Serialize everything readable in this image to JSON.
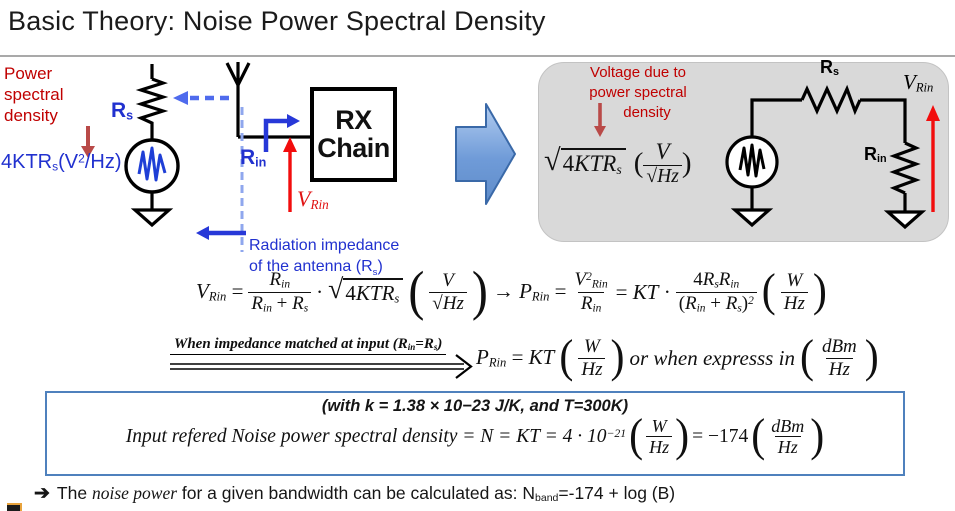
{
  "title": "Basic Theory: Noise Power Spectral Density",
  "colors": {
    "annotation_red": "#c00000",
    "bright_red": "#f20d0d",
    "label_blue": "#2131cf",
    "dashed_blue": "#4f6bed",
    "panel_gray": "#d9d9d9",
    "note_border_blue": "#4f81bd",
    "block_arrow_blue": "#6f9bd8"
  },
  "sym": {
    "lp": "(",
    "rp": ")",
    "sqrt": "√",
    "cdot": "·"
  },
  "left": {
    "psd_caption": [
      "Power",
      "spectral",
      "density"
    ],
    "psd_formula": [
      {
        "t": "4KTR"
      },
      {
        "t": "s",
        "v": "sub"
      },
      {
        "t": "(V"
      },
      {
        "t": "2",
        "v": "sup"
      },
      {
        "t": "/Hz)"
      }
    ],
    "rs": [
      {
        "t": "R"
      },
      {
        "t": "s",
        "v": "sub"
      }
    ],
    "rin": [
      {
        "t": "R"
      },
      {
        "t": "in",
        "v": "sub"
      }
    ],
    "vrin": [
      {
        "t": "V"
      },
      {
        "t": "Rin",
        "v": "sub"
      }
    ],
    "rx": {
      "line1": "RX",
      "line2": "Chain"
    },
    "rad_line1": "Radiation impedance",
    "rad_line2": [
      {
        "t": "of the antenna (R"
      },
      {
        "t": "s",
        "v": "sub"
      },
      {
        "t": ")"
      }
    ]
  },
  "panel": {
    "caption": [
      "Voltage due to",
      "power spectral",
      "density"
    ],
    "sqrt_body": [
      {
        "t": "4",
        "v": "up"
      },
      {
        "t": "KTR"
      },
      {
        "t": "s",
        "v": "sub"
      }
    ],
    "frac_num": "V",
    "frac_den": [
      {
        "t": "√",
        "v": "up"
      },
      {
        "t": "Hz",
        "v": "ol"
      }
    ],
    "rs": [
      {
        "t": "R"
      },
      {
        "t": "s",
        "v": "sub"
      }
    ],
    "rin": [
      {
        "t": "R"
      },
      {
        "t": "in",
        "v": "sub"
      }
    ],
    "vrin": [
      {
        "t": "V"
      },
      {
        "t": "Rin",
        "v": "sub"
      }
    ]
  },
  "eq1": {
    "lhs": [
      {
        "t": "V"
      },
      {
        "t": "Rin",
        "v": "sub"
      },
      {
        "t": " = ",
        "v": "up"
      }
    ],
    "f1_num": [
      {
        "t": "R"
      },
      {
        "t": "in",
        "v": "sub"
      }
    ],
    "f1_den": [
      {
        "t": "R"
      },
      {
        "t": "in",
        "v": "sub"
      },
      {
        "t": " + ",
        "v": "up"
      },
      {
        "t": "R"
      },
      {
        "t": "s",
        "v": "sub"
      }
    ],
    "cdot": "·",
    "sqrt_body": [
      {
        "t": "4",
        "v": "up"
      },
      {
        "t": "KTR"
      },
      {
        "t": "s",
        "v": "sub"
      }
    ],
    "pf1_num": [
      {
        "t": "V"
      }
    ],
    "pf1_den": [
      {
        "t": "√",
        "v": "up"
      },
      {
        "t": "Hz",
        "v": "ol"
      }
    ],
    "mid": [
      {
        "t": "→ ",
        "v": "up"
      },
      {
        "t": "P"
      },
      {
        "t": "Rin",
        "v": "sub"
      },
      {
        "t": " = ",
        "v": "up"
      }
    ],
    "f2_num": [
      {
        "t": "V"
      },
      {
        "t": "2",
        "v": "sup"
      },
      {
        "t": "Rin",
        "v": "sub"
      }
    ],
    "f2_den": [
      {
        "t": "R"
      },
      {
        "t": "in",
        "v": "sub"
      }
    ],
    "mid2": [
      {
        "t": "= ",
        "v": "up"
      },
      {
        "t": "KT"
      },
      {
        "t": " · ",
        "v": "up"
      }
    ],
    "f3_num": [
      {
        "t": "4",
        "v": "up"
      },
      {
        "t": "R"
      },
      {
        "t": "s",
        "v": "sub"
      },
      {
        "t": "R"
      },
      {
        "t": "in",
        "v": "sub"
      }
    ],
    "f3_den": [
      {
        "t": "(",
        "v": "up"
      },
      {
        "t": "R"
      },
      {
        "t": "in",
        "v": "sub"
      },
      {
        "t": " + ",
        "v": "up"
      },
      {
        "t": "R"
      },
      {
        "t": "s",
        "v": "sub"
      },
      {
        "t": ")",
        "v": "up"
      },
      {
        "t": "2",
        "v": "sup"
      }
    ],
    "pf2_num": "W",
    "pf2_den": "Hz"
  },
  "eq2": {
    "condition": [
      {
        "t": "When impedance matched at input ("
      },
      {
        "t": "R"
      },
      {
        "t": "in",
        "v": "sub"
      },
      {
        "t": "="
      },
      {
        "t": "R"
      },
      {
        "t": "s",
        "v": "sub"
      },
      {
        "t": ")"
      }
    ],
    "result": [
      {
        "t": "P"
      },
      {
        "t": "Rin",
        "v": "sub"
      },
      {
        "t": " = ",
        "v": "up"
      },
      {
        "t": "KT"
      }
    ],
    "pfW_num": "W",
    "pfW_den": "Hz",
    "or_text": "or when expresss in",
    "pfdBm_num": "dBm",
    "pfdBm_den": "Hz"
  },
  "note": {
    "line1": "(with k = 1.38 × 10−23 J/K, and T=300K)",
    "line2_pre": [
      {
        "t": "Input refered Noise power spectral density = N = KT = 4 · 10"
      },
      {
        "t": "−21",
        "v": "sup"
      }
    ],
    "pfW_num": "W",
    "pfW_den": "Hz",
    "line2_mid": [
      {
        "t": " = −174",
        "v": "up"
      }
    ],
    "pfdBm_num": "dBm",
    "pfdBm_den": "Hz"
  },
  "footer": {
    "arrow": "➔",
    "pre": "The ",
    "em": "noise power",
    "mid": " for a given bandwidth can be calculated as: N",
    "sub": "band",
    "tail": "=-174 + log (B)"
  }
}
